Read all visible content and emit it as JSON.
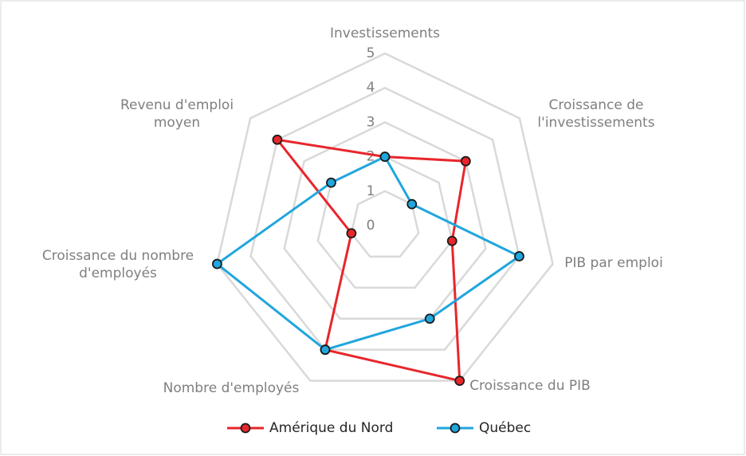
{
  "chart_data": {
    "type": "radar",
    "categories": [
      "Investissements",
      "Croissance de l'investissements",
      "PIB par emploi",
      "Croissance du PIB",
      "Nombre d'employés",
      "Croissance du nombre d'employés",
      "Revenu d'emploi moyen"
    ],
    "series": [
      {
        "name": "Amérique du Nord",
        "color": "#e8262b",
        "values": [
          2,
          3,
          2,
          5,
          4,
          1,
          4
        ]
      },
      {
        "name": "Québec",
        "color": "#21a6dd",
        "values": [
          2,
          1,
          4,
          3,
          4,
          5,
          2
        ]
      }
    ],
    "ylim": [
      0,
      5
    ],
    "yticks": [
      0,
      1,
      2,
      3,
      4,
      5
    ],
    "grid": true,
    "legend": "bottom"
  }
}
